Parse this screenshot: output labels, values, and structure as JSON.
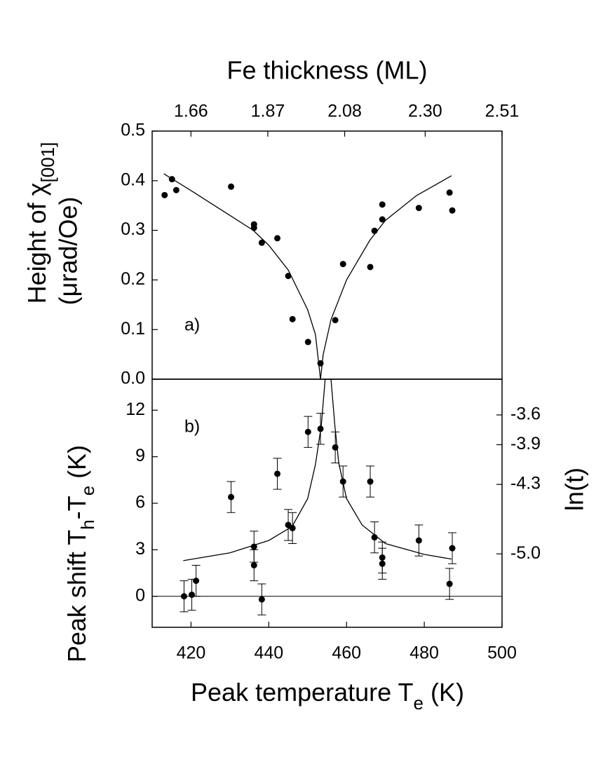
{
  "chart_data": [
    {
      "type": "scatter",
      "x2label": "Fe thickness (ML)",
      "ylabel_parts": [
        {
          "text": "Height of χ"
        },
        {
          "text": "[001]",
          "sub": true
        }
      ],
      "ylabel_line2": "(μrad/Oe)",
      "annotation": "a)",
      "xlim": [
        410,
        500
      ],
      "ylim": [
        0,
        0.5
      ],
      "yticks": [
        {
          "value": 0,
          "label": "0.0"
        },
        0.1,
        0.2,
        0.3,
        0.4,
        0.5
      ],
      "x2lim": [
        1.554,
        2.51
      ],
      "x2ticks": [
        1.66,
        1.87,
        2.08,
        {
          "value": 2.3,
          "label": "2.30"
        },
        2.51
      ],
      "series": [
        {
          "mode": "markers",
          "color": "#000000",
          "x": [
            413.2,
            415.1,
            416.2,
            430.3,
            436.2,
            436.2,
            438.2,
            442.2,
            445.0,
            446.1,
            450.1,
            453.3,
            457.1,
            459.1,
            466.1,
            467.2,
            469.2,
            469.2,
            478.6,
            486.5,
            487.2
          ],
          "values": [
            0.371,
            0.403,
            0.381,
            0.388,
            0.312,
            0.305,
            0.275,
            0.284,
            0.208,
            0.121,
            0.075,
            0.032,
            0.119,
            0.232,
            0.226,
            0.299,
            0.322,
            0.352,
            0.345,
            0.376,
            0.34
          ]
        },
        {
          "mode": "line",
          "color": "#000000",
          "x": [
            413,
            420,
            430,
            436,
            440,
            445,
            450,
            452,
            453.3,
            454,
            456,
            460,
            466,
            470,
            478,
            487
          ],
          "values": [
            0.414,
            0.38,
            0.33,
            0.3,
            0.27,
            0.22,
            0.14,
            0.09,
            0.0,
            0.05,
            0.12,
            0.2,
            0.28,
            0.32,
            0.37,
            0.41
          ]
        }
      ]
    },
    {
      "type": "scatter",
      "ylabel_parts": [
        {
          "text": "Peak shift T"
        },
        {
          "text": "h",
          "sub": true
        },
        {
          "text": "-T"
        },
        {
          "text": "e",
          "sub": true
        },
        {
          "text": " (K)"
        }
      ],
      "xlabel_parts": [
        {
          "text": "Peak temperature T"
        },
        {
          "text": "e",
          "sub": true
        },
        {
          "text": " (K)"
        }
      ],
      "y2label": "ln(t)",
      "annotation": "b)",
      "xlim": [
        410,
        500
      ],
      "xticks": [
        420,
        440,
        460,
        480,
        500
      ],
      "ylim": [
        -2,
        14
      ],
      "yticks": [
        0,
        3,
        6,
        9,
        12
      ],
      "y2lim": [
        -5.74,
        -3.24
      ],
      "y2ticks": [
        -3.6,
        -3.9,
        -4.3,
        {
          "value": -5,
          "label": "-5.0"
        }
      ],
      "hline": 0,
      "series": [
        {
          "mode": "markers",
          "color": "#000000",
          "x": [
            418.2,
            420.2,
            421.3,
            430.3,
            436.2,
            436.2,
            438.2,
            442.2,
            445.0,
            446.1,
            450.1,
            453.3,
            457.1,
            459.1,
            466.1,
            467.2,
            469.2,
            469.2,
            478.6,
            486.5,
            487.2
          ],
          "values": [
            0.0,
            0.1,
            1.0,
            6.4,
            3.2,
            2.0,
            -0.2,
            7.9,
            4.6,
            4.4,
            10.6,
            10.8,
            9.6,
            7.4,
            7.4,
            3.8,
            2.5,
            2.1,
            3.6,
            0.8,
            3.1
          ],
          "errors": [
            1,
            1,
            1,
            1,
            1,
            1,
            1,
            1,
            1,
            1,
            1,
            1,
            1,
            1,
            1,
            1,
            1,
            1,
            1,
            1,
            1
          ]
        },
        {
          "mode": "line",
          "color": "#000000",
          "x": [
            418,
            430,
            440,
            446,
            450,
            452,
            453.5,
            454.5,
            456,
            457,
            458,
            460,
            464,
            470,
            480,
            487
          ],
          "values": [
            2.3,
            2.8,
            3.6,
            4.5,
            6.3,
            8.5,
            11,
            14,
            14,
            11,
            8.6,
            6.3,
            4.6,
            3.4,
            2.7,
            2.4
          ]
        }
      ]
    }
  ]
}
